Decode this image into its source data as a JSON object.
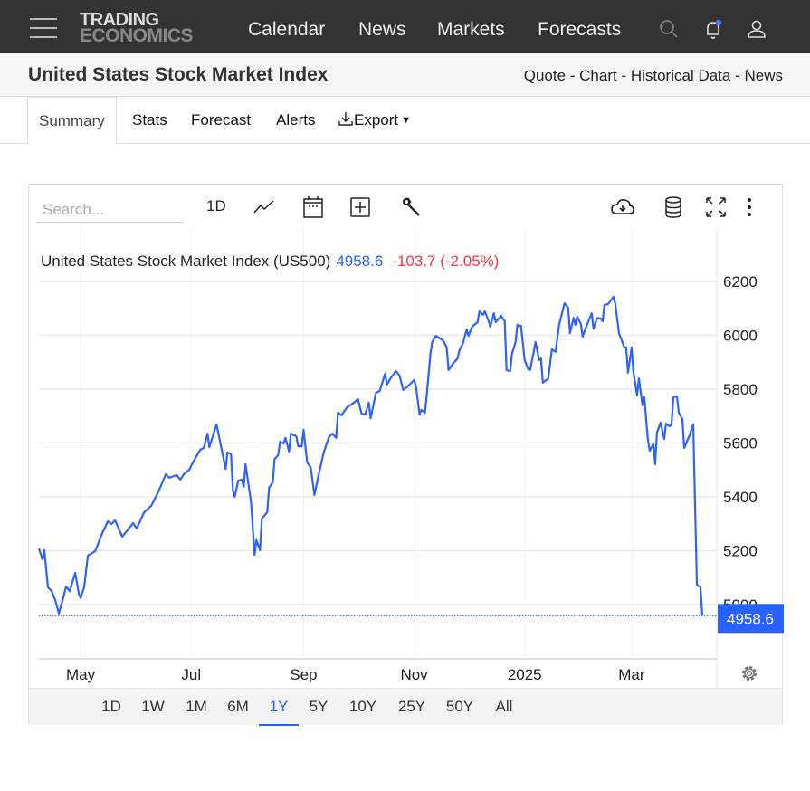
{
  "nav": {
    "logo_line1": "TRADING",
    "logo_line2": "ECONOMICS",
    "items": [
      "Calendar",
      "News",
      "Markets",
      "Forecasts"
    ],
    "icons": [
      "menu-icon",
      "search-icon",
      "bell-icon",
      "user-icon"
    ]
  },
  "header": {
    "title": "United States Stock Market Index",
    "links": [
      "Quote",
      "Chart",
      "Historical Data",
      "News"
    ],
    "separator": " - "
  },
  "tabs": {
    "items": [
      "Summary",
      "Stats",
      "Forecast",
      "Alerts",
      "Export"
    ],
    "active": "Summary"
  },
  "toolbar": {
    "search_placeholder": "Search...",
    "interval": "1D",
    "icons": [
      "line-chart-icon",
      "calendar-icon",
      "plus-square-icon",
      "wrench-icon",
      "cloud-download-icon",
      "database-icon",
      "fullscreen-icon",
      "more-vertical-icon"
    ]
  },
  "ranges": {
    "items": [
      "1D",
      "1W",
      "1M",
      "6M",
      "1Y",
      "5Y",
      "10Y",
      "25Y",
      "50Y",
      "All"
    ],
    "active": "1Y"
  },
  "colors": {
    "line": "#2f63f5",
    "last_price_bg": "#2962ff",
    "change_negative": "#f23645",
    "price": "#2962ff"
  },
  "chart_data": {
    "type": "line",
    "title": "United States Stock Market Index (US500)",
    "last_value": "4958.6",
    "change": "-103.7 (-2.05%)",
    "ylim": [
      4760,
      6360
    ],
    "y_ticks": [
      5000,
      5200,
      5400,
      5600,
      5800,
      6000,
      6200
    ],
    "x_range": [
      "2024-04-08",
      "2025-04-09"
    ],
    "x_ticks": [
      {
        "label": "May",
        "date": "2024-05-01"
      },
      {
        "label": "Jul",
        "date": "2024-07-01"
      },
      {
        "label": "Sep",
        "date": "2024-09-01"
      },
      {
        "label": "Nov",
        "date": "2024-11-01"
      },
      {
        "label": "2025",
        "date": "2025-01-01"
      },
      {
        "label": "Mar",
        "date": "2025-03-01"
      }
    ],
    "grid": true,
    "series": [
      {
        "points": [
          [
            "2024-04-08",
            5208
          ],
          [
            "2024-04-10",
            5168
          ],
          [
            "2024-04-11",
            5202
          ],
          [
            "2024-04-13",
            5064
          ],
          [
            "2024-04-15",
            5051
          ],
          [
            "2024-04-17",
            5017
          ],
          [
            "2024-04-19",
            4967
          ],
          [
            "2024-04-21",
            5014
          ],
          [
            "2024-04-23",
            5067
          ],
          [
            "2024-04-25",
            5050
          ],
          [
            "2024-04-28",
            5118
          ],
          [
            "2024-04-30",
            5040
          ],
          [
            "2024-05-01",
            5024
          ],
          [
            "2024-05-03",
            5067
          ],
          [
            "2024-05-05",
            5182
          ],
          [
            "2024-05-09",
            5198
          ],
          [
            "2024-05-13",
            5266
          ],
          [
            "2024-05-16",
            5309
          ],
          [
            "2024-05-18",
            5299
          ],
          [
            "2024-05-20",
            5313
          ],
          [
            "2024-05-24",
            5252
          ],
          [
            "2024-05-28",
            5286
          ],
          [
            "2024-05-30",
            5303
          ],
          [
            "2024-06-01",
            5282
          ],
          [
            "2024-06-05",
            5343
          ],
          [
            "2024-06-09",
            5367
          ],
          [
            "2024-06-13",
            5420
          ],
          [
            "2024-06-17",
            5484
          ],
          [
            "2024-06-19",
            5471
          ],
          [
            "2024-06-23",
            5481
          ],
          [
            "2024-06-25",
            5464
          ],
          [
            "2024-06-27",
            5484
          ],
          [
            "2024-06-30",
            5501
          ],
          [
            "2024-07-02",
            5528
          ],
          [
            "2024-07-06",
            5575
          ],
          [
            "2024-07-08",
            5582
          ],
          [
            "2024-07-10",
            5635
          ],
          [
            "2024-07-11",
            5585
          ],
          [
            "2024-07-15",
            5669
          ],
          [
            "2024-07-20",
            5504
          ],
          [
            "2024-07-21",
            5565
          ],
          [
            "2024-07-23",
            5558
          ],
          [
            "2024-07-24",
            5427
          ],
          [
            "2024-07-25",
            5400
          ],
          [
            "2024-07-27",
            5461
          ],
          [
            "2024-07-29",
            5464
          ],
          [
            "2024-07-30",
            5437
          ],
          [
            "2024-07-31",
            5521
          ],
          [
            "2024-08-03",
            5383
          ],
          [
            "2024-08-05",
            5185
          ],
          [
            "2024-08-06",
            5239
          ],
          [
            "2024-08-08",
            5202
          ],
          [
            "2024-08-09",
            5319
          ],
          [
            "2024-08-12",
            5343
          ],
          [
            "2024-08-13",
            5434
          ],
          [
            "2024-08-15",
            5454
          ],
          [
            "2024-08-16",
            5541
          ],
          [
            "2024-08-18",
            5555
          ],
          [
            "2024-08-19",
            5605
          ],
          [
            "2024-08-21",
            5598
          ],
          [
            "2024-08-22",
            5619
          ],
          [
            "2024-08-24",
            5568
          ],
          [
            "2024-08-25",
            5635
          ],
          [
            "2024-08-28",
            5625
          ],
          [
            "2024-08-29",
            5588
          ],
          [
            "2024-08-31",
            5588
          ],
          [
            "2024-09-01",
            5649
          ],
          [
            "2024-09-03",
            5528
          ],
          [
            "2024-09-05",
            5508
          ],
          [
            "2024-09-07",
            5407
          ],
          [
            "2024-09-09",
            5471
          ],
          [
            "2024-09-12",
            5561
          ],
          [
            "2024-09-15",
            5622
          ],
          [
            "2024-09-17",
            5635
          ],
          [
            "2024-09-19",
            5619
          ],
          [
            "2024-09-20",
            5713
          ],
          [
            "2024-09-22",
            5703
          ],
          [
            "2024-09-25",
            5733
          ],
          [
            "2024-09-28",
            5746
          ],
          [
            "2024-10-01",
            5763
          ],
          [
            "2024-10-03",
            5709
          ],
          [
            "2024-10-05",
            5706
          ],
          [
            "2024-10-07",
            5750
          ],
          [
            "2024-10-08",
            5692
          ],
          [
            "2024-10-11",
            5787
          ],
          [
            "2024-10-13",
            5793
          ],
          [
            "2024-10-16",
            5857
          ],
          [
            "2024-10-17",
            5817
          ],
          [
            "2024-10-19",
            5840
          ],
          [
            "2024-10-22",
            5867
          ],
          [
            "2024-10-24",
            5850
          ],
          [
            "2024-10-26",
            5797
          ],
          [
            "2024-10-28",
            5807
          ],
          [
            "2024-11-01",
            5834
          ],
          [
            "2024-11-02",
            5810
          ],
          [
            "2024-11-04",
            5706
          ],
          [
            "2024-11-05",
            5723
          ],
          [
            "2024-11-07",
            5713
          ],
          [
            "2024-11-08",
            5780
          ],
          [
            "2024-11-10",
            5931
          ],
          [
            "2024-11-11",
            5975
          ],
          [
            "2024-11-13",
            5998
          ],
          [
            "2024-11-16",
            5985
          ],
          [
            "2024-11-17",
            5981
          ],
          [
            "2024-11-19",
            5955
          ],
          [
            "2024-11-20",
            5871
          ],
          [
            "2024-11-22",
            5891
          ],
          [
            "2024-11-25",
            5914
          ],
          [
            "2024-11-26",
            5944
          ],
          [
            "2024-11-28",
            5971
          ],
          [
            "2024-11-30",
            6022
          ],
          [
            "2024-12-01",
            5998
          ],
          [
            "2024-12-03",
            6032
          ],
          [
            "2024-12-06",
            6049
          ],
          [
            "2024-12-07",
            6089
          ],
          [
            "2024-12-09",
            6076
          ],
          [
            "2024-12-10",
            6089
          ],
          [
            "2024-12-12",
            6055
          ],
          [
            "2024-12-13",
            6032
          ],
          [
            "2024-12-15",
            6082
          ],
          [
            "2024-12-16",
            6049
          ],
          [
            "2024-12-19",
            6072
          ],
          [
            "2024-12-21",
            6052
          ],
          [
            "2024-12-22",
            5871
          ],
          [
            "2024-12-24",
            5867
          ],
          [
            "2024-12-25",
            5931
          ],
          [
            "2024-12-27",
            5975
          ],
          [
            "2024-12-28",
            6039
          ],
          [
            "2024-12-30",
            6035
          ],
          [
            "2025-01-01",
            5908
          ],
          [
            "2025-01-03",
            5874
          ],
          [
            "2025-01-04",
            5871
          ],
          [
            "2025-01-06",
            5938
          ],
          [
            "2025-01-07",
            5975
          ],
          [
            "2025-01-09",
            5908
          ],
          [
            "2025-01-10",
            5914
          ],
          [
            "2025-01-11",
            5824
          ],
          [
            "2025-01-14",
            5840
          ],
          [
            "2025-01-16",
            5948
          ],
          [
            "2025-01-18",
            5938
          ],
          [
            "2025-01-20",
            6039
          ],
          [
            "2025-01-23",
            6119
          ],
          [
            "2025-01-25",
            6102
          ],
          [
            "2025-01-26",
            6008
          ],
          [
            "2025-01-28",
            6065
          ],
          [
            "2025-01-29",
            6039
          ],
          [
            "2025-01-30",
            6069
          ],
          [
            "2025-02-01",
            6042
          ],
          [
            "2025-02-02",
            5995
          ],
          [
            "2025-02-04",
            6032
          ],
          [
            "2025-02-07",
            6082
          ],
          [
            "2025-02-08",
            6025
          ],
          [
            "2025-02-10",
            6065
          ],
          [
            "2025-02-12",
            6062
          ],
          [
            "2025-02-13",
            6052
          ],
          [
            "2025-02-14",
            6113
          ],
          [
            "2025-02-16",
            6116
          ],
          [
            "2025-02-19",
            6143
          ],
          [
            "2025-02-20",
            6116
          ],
          [
            "2025-02-22",
            6008
          ],
          [
            "2025-02-25",
            5955
          ],
          [
            "2025-02-26",
            5955
          ],
          [
            "2025-02-27",
            5861
          ],
          [
            "2025-03-01",
            5955
          ],
          [
            "2025-03-02",
            5864
          ],
          [
            "2025-03-04",
            5777
          ],
          [
            "2025-03-05",
            5840
          ],
          [
            "2025-03-07",
            5740
          ],
          [
            "2025-03-08",
            5770
          ],
          [
            "2025-03-10",
            5612
          ],
          [
            "2025-03-11",
            5571
          ],
          [
            "2025-03-13",
            5598
          ],
          [
            "2025-03-14",
            5521
          ],
          [
            "2025-03-15",
            5639
          ],
          [
            "2025-03-17",
            5676
          ],
          [
            "2025-03-19",
            5615
          ],
          [
            "2025-03-20",
            5672
          ],
          [
            "2025-03-22",
            5662
          ],
          [
            "2025-03-23",
            5669
          ],
          [
            "2025-03-24",
            5770
          ],
          [
            "2025-03-26",
            5773
          ],
          [
            "2025-03-27",
            5713
          ],
          [
            "2025-03-29",
            5689
          ],
          [
            "2025-03-30",
            5582
          ],
          [
            "2025-04-02",
            5629
          ],
          [
            "2025-04-04",
            5669
          ],
          [
            "2025-04-06",
            5074
          ],
          [
            "2025-04-08",
            5064
          ],
          [
            "2025-04-09",
            4958.6
          ]
        ]
      }
    ]
  }
}
